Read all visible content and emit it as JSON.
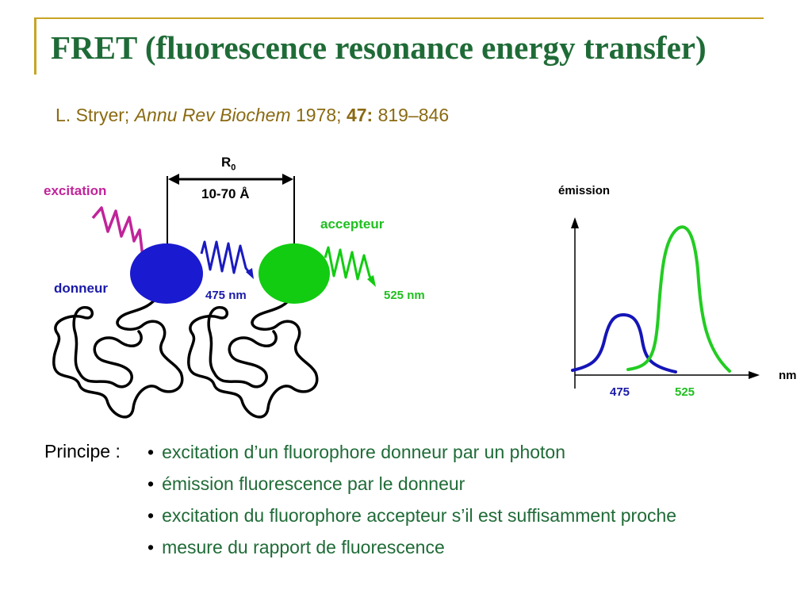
{
  "title": "FRET (fluorescence resonance energy transfer)",
  "reference": {
    "author": "L. Stryer;",
    "journal": "Annu Rev Biochem",
    "year": "1978;",
    "volume": "47:",
    "pages": "819–846"
  },
  "diagram": {
    "r0_label": "R",
    "r0_sub": "0",
    "distance": "10-70 Å",
    "excitation": "excitation",
    "donor": "donneur",
    "acceptor": "accepteur",
    "donor_wavelength": "475 nm",
    "acceptor_wavelength": "525 nm",
    "colors": {
      "donor": "#1a1ad0",
      "acceptor": "#11cc11",
      "excitation": "#c0249a"
    }
  },
  "spectrum": {
    "y_label": "émission",
    "x_label": "nm",
    "donor_peak": "475",
    "acceptor_peak": "525"
  },
  "principle": {
    "label": "Principe :",
    "items": [
      "excitation d’un fluorophore donneur par un photon",
      "émission fluorescence par le donneur",
      "excitation du fluorophore accepteur s’il est suffisamment proche",
      "mesure du rapport de fluorescence"
    ]
  }
}
